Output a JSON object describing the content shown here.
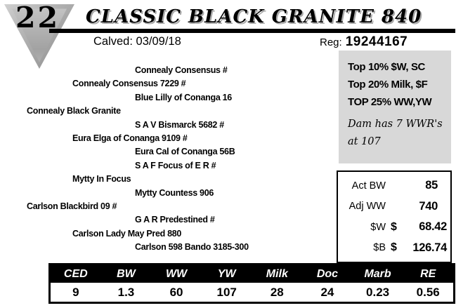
{
  "lot": {
    "number": "22"
  },
  "header": {
    "title": "CLASSIC BLACK GRANITE 840",
    "calved_label": "Calved:",
    "calved_date": "03/09/18",
    "reg_label": "Reg:",
    "reg_number": "19244167"
  },
  "pedigree": {
    "lines": [
      {
        "text": "Connealy Consensus #",
        "indent": 3
      },
      {
        "text": "Connealy Consensus 7229 #",
        "indent": 2
      },
      {
        "text": "Blue Lilly of Conanga 16",
        "indent": 3
      },
      {
        "text": "Connealy Black Granite",
        "indent": 1
      },
      {
        "text": "S A V Bismarck 5682 #",
        "indent": 3
      },
      {
        "text": "Eura Elga of Conanga 9109 #",
        "indent": 2
      },
      {
        "text": "Eura Cal of Conanga 56B",
        "indent": 3
      },
      {
        "text": "S A F Focus of E R #",
        "indent": 3
      },
      {
        "text": "Mytty In Focus",
        "indent": 2
      },
      {
        "text": "Mytty Countess 906",
        "indent": 3
      },
      {
        "text": "Carlson Blackbird 09 #",
        "indent": 1
      },
      {
        "text": "G A R Predestined #",
        "indent": 3
      },
      {
        "text": "Carlson Lady May Pred 880",
        "indent": 2
      },
      {
        "text": "Carlson 598 Bando 3185-300",
        "indent": 3
      }
    ]
  },
  "highlights": {
    "lines": [
      "Top 10% $W, SC",
      "Top 20% Milk, $F",
      "TOP 25% WW,YW"
    ],
    "note": "Dam has 7 WWR's at 107"
  },
  "measurements": {
    "rows": [
      {
        "label": "Act BW",
        "prefix": "",
        "value": "85"
      },
      {
        "label": "Adj WW",
        "prefix": "",
        "value": "740"
      },
      {
        "label": "$W",
        "prefix": "$",
        "value": "68.42"
      },
      {
        "label": "$B",
        "prefix": "$",
        "value": "126.74"
      }
    ]
  },
  "epd_table": {
    "columns": [
      "CED",
      "BW",
      "WW",
      "YW",
      "Milk",
      "Doc",
      "Marb",
      "RE"
    ],
    "values": [
      "9",
      "1.3",
      "60",
      "107",
      "28",
      "24",
      "0.23",
      "0.56"
    ]
  },
  "colors": {
    "highlight_box_bg": "#d8d8d8",
    "table_header_bg": "#000000",
    "table_header_text": "#ffffff",
    "badge_gray": "#aeaeae"
  }
}
